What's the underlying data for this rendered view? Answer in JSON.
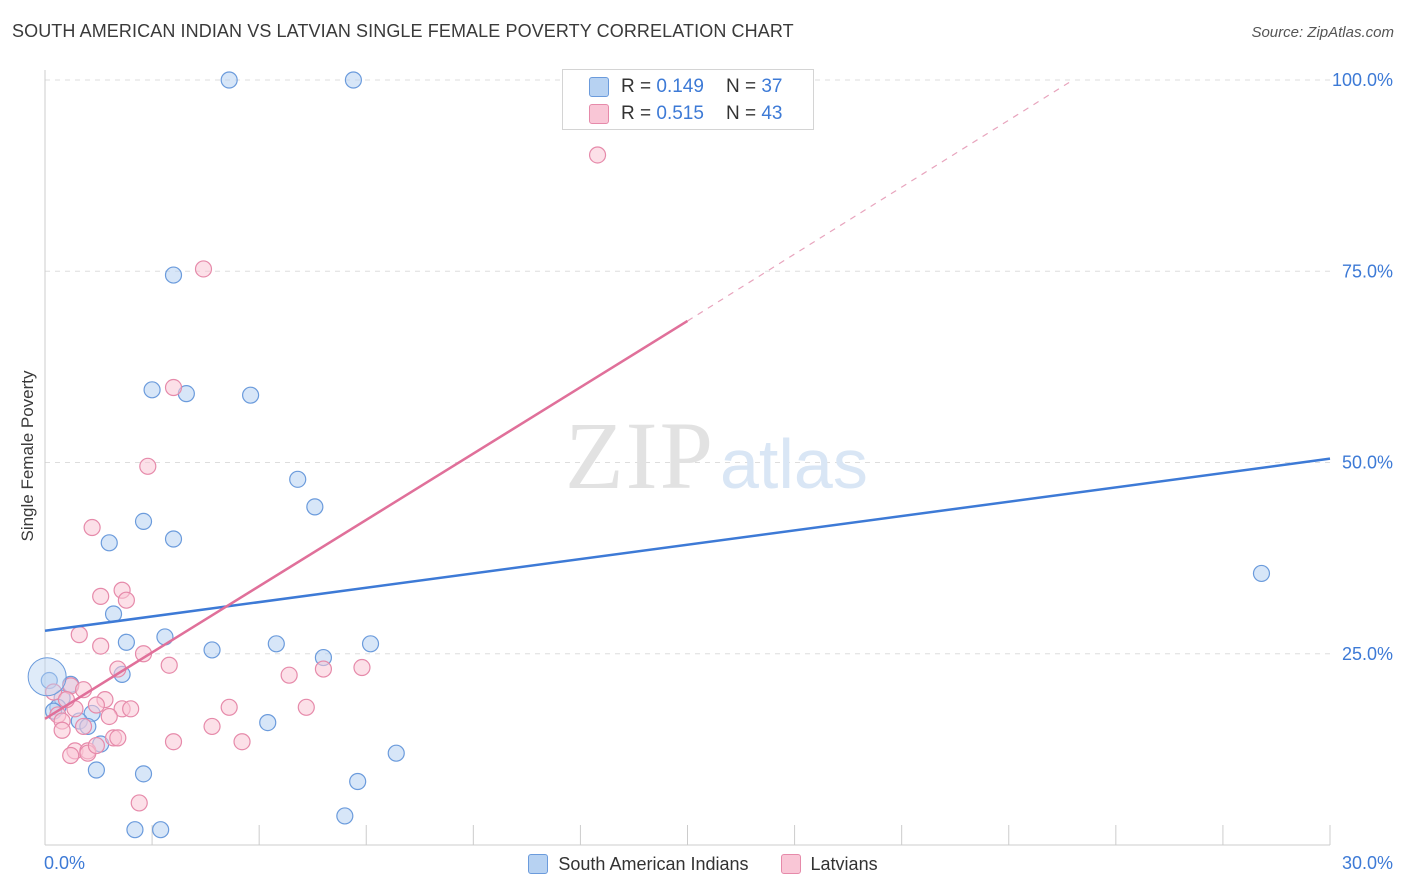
{
  "title": "SOUTH AMERICAN INDIAN VS LATVIAN SINGLE FEMALE POVERTY CORRELATION CHART",
  "source": "Source: ZipAtlas.com",
  "watermark": {
    "zip": "ZIP",
    "atlas": "atlas"
  },
  "legend_top": [
    {
      "r_label": "R =",
      "r_value": "0.149",
      "n_label": "N =",
      "n_value": "37"
    },
    {
      "r_label": "R =",
      "r_value": "0.515",
      "n_label": "N =",
      "n_value": "43"
    }
  ],
  "legend_bottom": [
    "South American Indians",
    "Latvians"
  ],
  "colors": {
    "blue_fill": "#b7d2f2",
    "blue_stroke": "#6b9bdc",
    "blue_line": "#3d7ad6",
    "pink_fill": "#f9c6d6",
    "pink_stroke": "#e68aaa",
    "pink_line": "#e0709a",
    "tick_label": "#3d7ad6",
    "grid": "#dddddd"
  },
  "chart_data": {
    "type": "scatter",
    "title": "SOUTH AMERICAN INDIAN VS LATVIAN SINGLE FEMALE POVERTY CORRELATION CHART",
    "xlabel": "",
    "ylabel": "Single Female Poverty",
    "xlim": [
      0,
      30
    ],
    "ylim": [
      0,
      100
    ],
    "x_tick_labels": [
      "0.0%",
      "30.0%"
    ],
    "y_ticks": [
      25,
      50,
      75,
      100
    ],
    "y_tick_labels": [
      "25.0%",
      "50.0%",
      "75.0%",
      "100.0%"
    ],
    "grid": true,
    "series": [
      {
        "name": "South American Indians",
        "r": 0.149,
        "n": 37,
        "trend": {
          "x0": 0,
          "y0": 28.0,
          "x1": 30,
          "y1": 50.5
        },
        "points": [
          [
            4.3,
            100
          ],
          [
            7.2,
            100
          ],
          [
            3.0,
            74.5
          ],
          [
            2.5,
            59.5
          ],
          [
            3.3,
            59.0
          ],
          [
            4.8,
            58.8
          ],
          [
            5.9,
            47.8
          ],
          [
            6.3,
            44.2
          ],
          [
            2.3,
            42.3
          ],
          [
            3.0,
            40.0
          ],
          [
            1.5,
            39.5
          ],
          [
            1.6,
            30.2
          ],
          [
            2.8,
            27.2
          ],
          [
            1.9,
            26.5
          ],
          [
            3.9,
            25.5
          ],
          [
            5.4,
            26.3
          ],
          [
            6.5,
            24.5
          ],
          [
            7.6,
            26.3
          ],
          [
            1.8,
            22.3
          ],
          [
            0.1,
            21.5
          ],
          [
            0.6,
            21.0
          ],
          [
            0.4,
            19.2
          ],
          [
            1.1,
            17.2
          ],
          [
            0.8,
            16.2
          ],
          [
            1.0,
            15.5
          ],
          [
            5.2,
            16.0
          ],
          [
            1.3,
            13.2
          ],
          [
            8.2,
            12.0
          ],
          [
            1.2,
            9.8
          ],
          [
            2.3,
            9.3
          ],
          [
            7.3,
            8.3
          ],
          [
            2.1,
            2.0
          ],
          [
            2.7,
            2.0
          ],
          [
            7.0,
            3.8
          ],
          [
            0.3,
            18.0
          ],
          [
            28.4,
            35.5
          ],
          [
            0.2,
            17.5
          ]
        ]
      },
      {
        "name": "Latvians",
        "r": 0.515,
        "n": 43,
        "trend": {
          "x0": 0,
          "y0": 16.5,
          "x1": 15,
          "y1": 68.5,
          "dash_to_x": 24,
          "dash_to_y": 100
        },
        "points": [
          [
            12.9,
            90.2
          ],
          [
            3.7,
            75.3
          ],
          [
            3.0,
            59.8
          ],
          [
            2.4,
            49.5
          ],
          [
            1.1,
            41.5
          ],
          [
            1.3,
            32.5
          ],
          [
            1.8,
            33.3
          ],
          [
            1.9,
            32.0
          ],
          [
            0.8,
            27.5
          ],
          [
            1.3,
            26.0
          ],
          [
            2.3,
            25.0
          ],
          [
            2.9,
            23.5
          ],
          [
            1.7,
            23.0
          ],
          [
            5.7,
            22.2
          ],
          [
            6.5,
            23.0
          ],
          [
            7.4,
            23.2
          ],
          [
            0.6,
            20.8
          ],
          [
            0.9,
            20.3
          ],
          [
            1.4,
            19.0
          ],
          [
            1.2,
            18.3
          ],
          [
            1.8,
            17.8
          ],
          [
            2.0,
            17.8
          ],
          [
            4.3,
            18.0
          ],
          [
            6.1,
            18.0
          ],
          [
            0.3,
            17.0
          ],
          [
            0.4,
            16.2
          ],
          [
            1.5,
            16.8
          ],
          [
            0.9,
            15.5
          ],
          [
            0.4,
            15.0
          ],
          [
            1.6,
            14.0
          ],
          [
            1.7,
            14.0
          ],
          [
            3.0,
            13.5
          ],
          [
            4.6,
            13.5
          ],
          [
            0.7,
            12.3
          ],
          [
            1.0,
            12.3
          ],
          [
            1.0,
            12.0
          ],
          [
            0.6,
            11.7
          ],
          [
            3.9,
            15.5
          ],
          [
            2.2,
            5.5
          ],
          [
            0.2,
            20.0
          ],
          [
            0.7,
            17.8
          ],
          [
            1.2,
            13.0
          ],
          [
            0.5,
            19.0
          ]
        ]
      }
    ]
  }
}
